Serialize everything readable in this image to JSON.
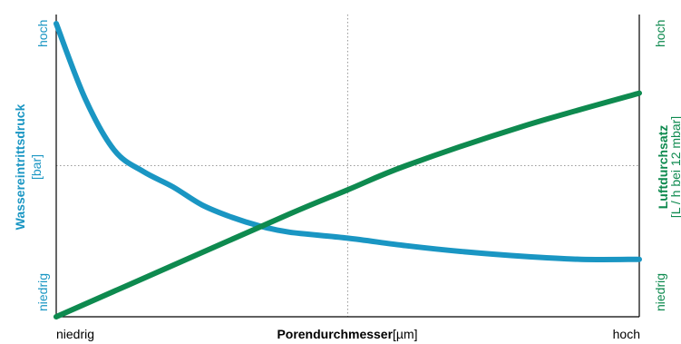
{
  "chart_data": {
    "type": "line",
    "xlabel": "Porendurchmesser",
    "xlabel_unit": "[µm]",
    "x_ticks": [
      "niedrig",
      "hoch"
    ],
    "xlim": [
      0,
      1
    ],
    "left_axis": {
      "label": "Wassereintrittsdruck",
      "unit": "[bar]",
      "ticks": [
        "niedrig",
        "hoch"
      ],
      "color": "#1A96C3",
      "ylim": [
        0,
        1
      ]
    },
    "right_axis": {
      "label": "Luftdurchsatz",
      "unit": "[L / h bei 12 mbar]",
      "ticks": [
        "niedrig",
        "hoch"
      ],
      "color": "#0E8A4F",
      "ylim": [
        0,
        1
      ]
    },
    "grid": "dotted, center lines",
    "series": [
      {
        "axis": "left",
        "color": "#1A96C3",
        "x": [
          0.0,
          0.05,
          0.1,
          0.15,
          0.2,
          0.25,
          0.3,
          0.35,
          0.4,
          0.5,
          0.6,
          0.7,
          0.8,
          0.9,
          1.0
        ],
        "y": [
          0.97,
          0.72,
          0.55,
          0.48,
          0.43,
          0.37,
          0.33,
          0.3,
          0.28,
          0.26,
          0.235,
          0.215,
          0.2,
          0.19,
          0.19
        ]
      },
      {
        "axis": "right",
        "color": "#0E8A4F",
        "x": [
          0.0,
          0.2,
          0.4,
          0.5,
          0.6,
          0.8,
          1.0
        ],
        "y": [
          0.0,
          0.17,
          0.34,
          0.42,
          0.5,
          0.63,
          0.74
        ]
      }
    ]
  }
}
